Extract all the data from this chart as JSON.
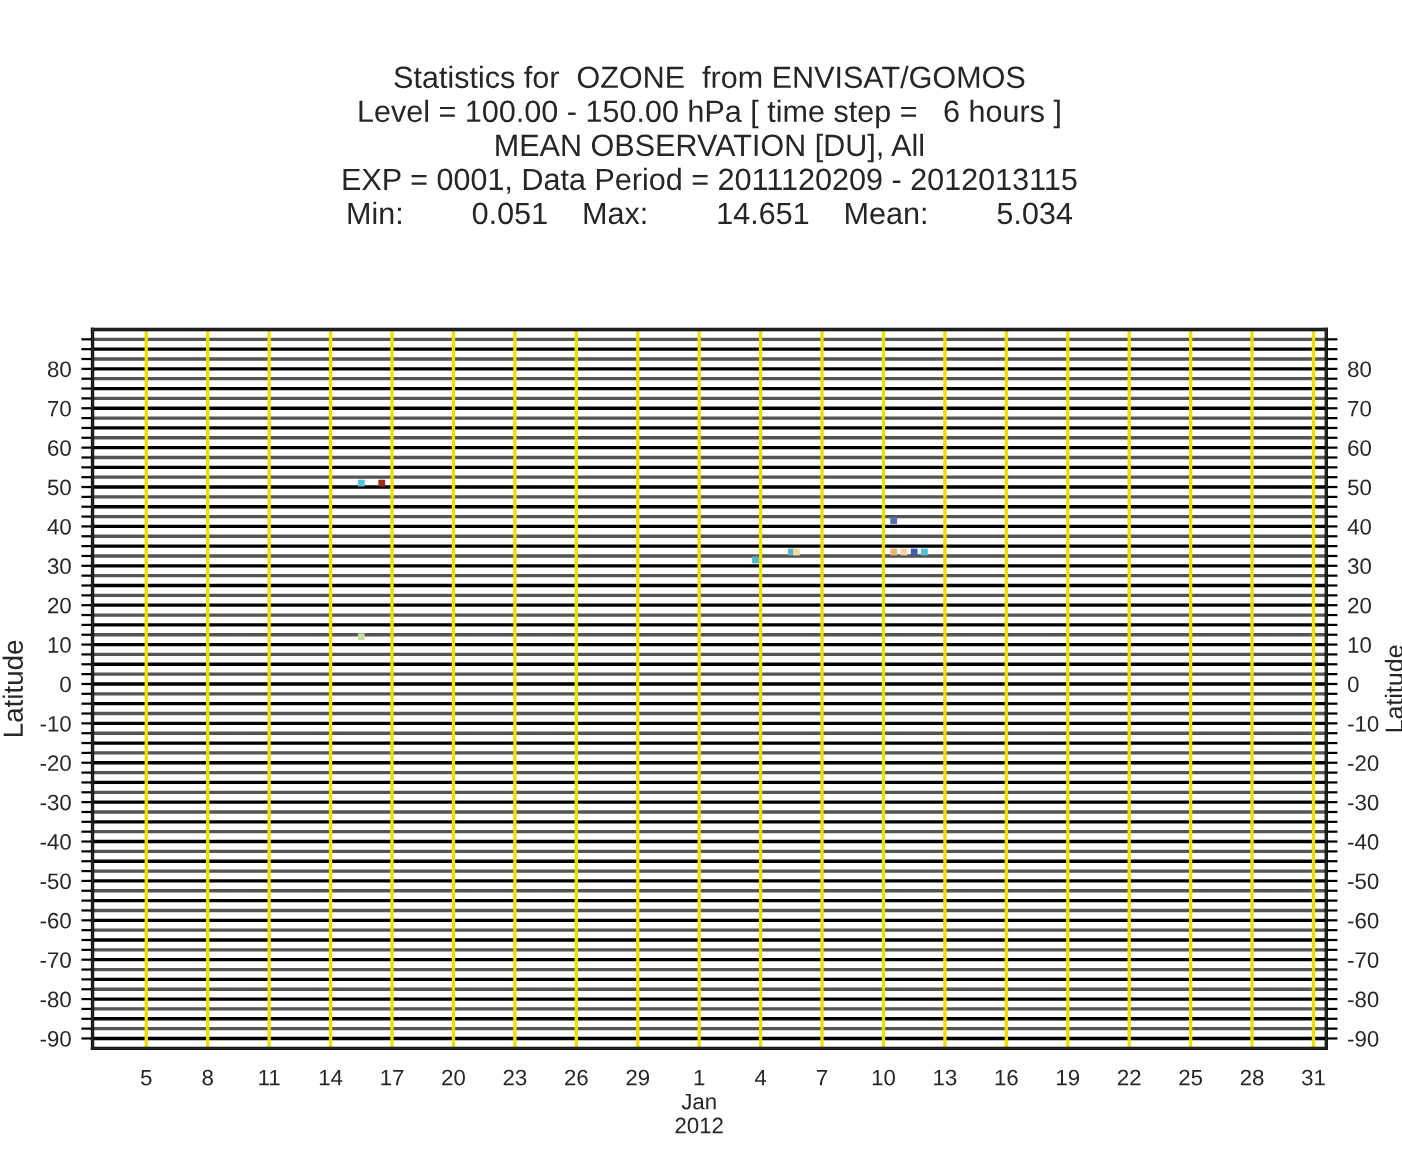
{
  "chart_data": {
    "type": "scatter",
    "title": "Statistics for  OZONE  from ENVISAT/GOMOS\nLevel = 100.00 - 150.00 hPa [ time step =   6 hours ]\nMEAN OBSERVATION [DU], All\nEXP = 0001, Data Period = 2011120209 - 2012013115\nMin:        0.051    Max:        14.651    Mean:        5.034",
    "ylabel": "Latitude",
    "y2label": "Latitude",
    "x": [
      "2011-12-15T12:00",
      "2011-12-16T12:00",
      "2011-12-15T12:00",
      "2012-01-03T18:00",
      "2012-01-05T12:00",
      "2012-01-05T18:00",
      "2012-01-10T12:00",
      "2012-01-10T12:00",
      "2012-01-11T00:00",
      "2012-01-11T12:00",
      "2012-01-12T00:00"
    ],
    "values": [
      51,
      51,
      12,
      31.5,
      33.5,
      33.5,
      41.5,
      33.5,
      33.5,
      33.5,
      33.5
    ],
    "colors": [
      "#5bc4dc",
      "#a0301c",
      "#c8dca0",
      "#50b8d0",
      "#50b8d0",
      "#f0dca0",
      "#5070b4",
      "#f0b478",
      "#f8d0a0",
      "#4060b0",
      "#50c0dc"
    ],
    "marker": "square",
    "grid": true,
    "legend": false,
    "xlim": [
      "2011-12-02T09:00",
      "2012-01-31T15:00"
    ],
    "xticks": [
      {
        "value": "2011-12-05",
        "label": "5"
      },
      {
        "value": "2011-12-08",
        "label": "8"
      },
      {
        "value": "2011-12-11",
        "label": "11"
      },
      {
        "value": "2011-12-14",
        "label": "14"
      },
      {
        "value": "2011-12-17",
        "label": "17"
      },
      {
        "value": "2011-12-20",
        "label": "20"
      },
      {
        "value": "2011-12-23",
        "label": "23"
      },
      {
        "value": "2011-12-26",
        "label": "26"
      },
      {
        "value": "2011-12-29",
        "label": "29"
      },
      {
        "value": "2012-01-01",
        "label": "1\nJan\n2012"
      },
      {
        "value": "2012-01-04",
        "label": "4"
      },
      {
        "value": "2012-01-07",
        "label": "7"
      },
      {
        "value": "2012-01-10",
        "label": "10"
      },
      {
        "value": "2012-01-13",
        "label": "13"
      },
      {
        "value": "2012-01-16",
        "label": "16"
      },
      {
        "value": "2012-01-19",
        "label": "19"
      },
      {
        "value": "2012-01-22",
        "label": "22"
      },
      {
        "value": "2012-01-25",
        "label": "25"
      },
      {
        "value": "2012-01-28",
        "label": "28"
      },
      {
        "value": "2012-01-31",
        "label": "31"
      }
    ],
    "ylim": [
      -92.5,
      90
    ],
    "y2lim": [
      -92.5,
      90
    ],
    "y2ticks": [
      -90,
      {
        "value": -87.5,
        "label": null
      },
      {
        "value": -85,
        "label": null
      },
      {
        "value": -82.5,
        "label": null
      },
      -80,
      {
        "value": -77.5,
        "label": null
      },
      {
        "value": -75,
        "label": null
      },
      {
        "value": -72.5,
        "label": null
      },
      -70,
      {
        "value": -67.5,
        "label": null
      },
      {
        "value": -65,
        "label": null
      },
      {
        "value": -62.5,
        "label": null
      },
      -60,
      {
        "value": -57.5,
        "label": null
      },
      {
        "value": -55,
        "label": null
      },
      {
        "value": -52.5,
        "label": null
      },
      -50,
      {
        "value": -47.5,
        "label": null
      },
      {
        "value": -45,
        "label": null
      },
      {
        "value": -42.5,
        "label": null
      },
      -40,
      {
        "value": -37.5,
        "label": null
      },
      {
        "value": -35,
        "label": null
      },
      {
        "value": -32.5,
        "label": null
      },
      -30,
      {
        "value": -27.5,
        "label": null
      },
      {
        "value": -25,
        "label": null
      },
      {
        "value": -22.5,
        "label": null
      },
      -20,
      {
        "value": -17.5,
        "label": null
      },
      {
        "value": -15,
        "label": null
      },
      {
        "value": -12.5,
        "label": null
      },
      -10,
      {
        "value": -7.5,
        "label": null
      },
      {
        "value": -5,
        "label": null
      },
      {
        "value": -2.5,
        "label": null
      },
      0,
      {
        "value": 2.5,
        "label": null
      },
      {
        "value": 5,
        "label": null
      },
      {
        "value": 7.5,
        "label": null
      },
      10,
      {
        "value": 12.5,
        "label": null
      },
      {
        "value": 15,
        "label": null
      },
      {
        "value": 17.5,
        "label": null
      },
      20,
      {
        "value": 22.5,
        "label": null
      },
      {
        "value": 25,
        "label": null
      },
      {
        "value": 27.5,
        "label": null
      },
      30,
      {
        "value": 32.5,
        "label": null
      },
      {
        "value": 35,
        "label": null
      },
      {
        "value": 37.5,
        "label": null
      },
      40,
      {
        "value": 42.5,
        "label": null
      },
      {
        "value": 45,
        "label": null
      },
      {
        "value": 47.5,
        "label": null
      },
      50,
      {
        "value": 52.5,
        "label": null
      },
      {
        "value": 55,
        "label": null
      },
      {
        "value": 57.5,
        "label": null
      },
      60,
      {
        "value": 62.5,
        "label": null
      },
      {
        "value": 65,
        "label": null
      },
      {
        "value": 67.5,
        "label": null
      },
      70,
      {
        "value": 72.5,
        "label": null
      },
      {
        "value": 75,
        "label": null
      },
      {
        "value": 77.5,
        "label": null
      },
      80,
      {
        "value": 82.5,
        "label": null
      },
      {
        "value": 85,
        "label": null
      },
      {
        "value": 87.5,
        "label": null
      }
    ],
    "yticks": [
      -90,
      {
        "value": -87.5,
        "label": null
      },
      {
        "value": -85,
        "label": null
      },
      {
        "value": -82.5,
        "label": null
      },
      -80,
      {
        "value": -77.5,
        "label": null
      },
      {
        "value": -75,
        "label": null
      },
      {
        "value": -72.5,
        "label": null
      },
      -70,
      {
        "value": -67.5,
        "label": null
      },
      {
        "value": -65,
        "label": null
      },
      {
        "value": -62.5,
        "label": null
      },
      -60,
      {
        "value": -57.5,
        "label": null
      },
      {
        "value": -55,
        "label": null
      },
      {
        "value": -52.5,
        "label": null
      },
      -50,
      {
        "value": -47.5,
        "label": null
      },
      {
        "value": -45,
        "label": null
      },
      {
        "value": -42.5,
        "label": null
      },
      -40,
      {
        "value": -37.5,
        "label": null
      },
      {
        "value": -35,
        "label": null
      },
      {
        "value": -32.5,
        "label": null
      },
      -30,
      {
        "value": -27.5,
        "label": null
      },
      {
        "value": -25,
        "label": null
      },
      {
        "value": -22.5,
        "label": null
      },
      -20,
      {
        "value": -17.5,
        "label": null
      },
      {
        "value": -15,
        "label": null
      },
      {
        "value": -12.5,
        "label": null
      },
      -10,
      {
        "value": -7.5,
        "label": null
      },
      {
        "value": -5,
        "label": null
      },
      {
        "value": -2.5,
        "label": null
      },
      0,
      {
        "value": 2.5,
        "label": null
      },
      {
        "value": 5,
        "label": null
      },
      {
        "value": 7.5,
        "label": null
      },
      10,
      {
        "value": 12.5,
        "label": null
      },
      {
        "value": 15,
        "label": null
      },
      {
        "value": 17.5,
        "label": null
      },
      20,
      {
        "value": 22.5,
        "label": null
      },
      {
        "value": 25,
        "label": null
      },
      {
        "value": 27.5,
        "label": null
      },
      30,
      {
        "value": 32.5,
        "label": null
      },
      {
        "value": 35,
        "label": null
      },
      {
        "value": 37.5,
        "label": null
      },
      40,
      {
        "value": 42.5,
        "label": null
      },
      {
        "value": 45,
        "label": null
      },
      {
        "value": 47.5,
        "label": null
      },
      50,
      {
        "value": 52.5,
        "label": null
      },
      {
        "value": 55,
        "label": null
      },
      {
        "value": 57.5,
        "label": null
      },
      60,
      {
        "value": 62.5,
        "label": null
      },
      {
        "value": 65,
        "label": null
      },
      {
        "value": 67.5,
        "label": null
      },
      70,
      {
        "value": 72.5,
        "label": null
      },
      {
        "value": 75,
        "label": null
      },
      {
        "value": 77.5,
        "label": null
      },
      80,
      {
        "value": 82.5,
        "label": null
      },
      {
        "value": 85,
        "label": null
      },
      {
        "value": 87.5,
        "label": null
      }
    ]
  }
}
